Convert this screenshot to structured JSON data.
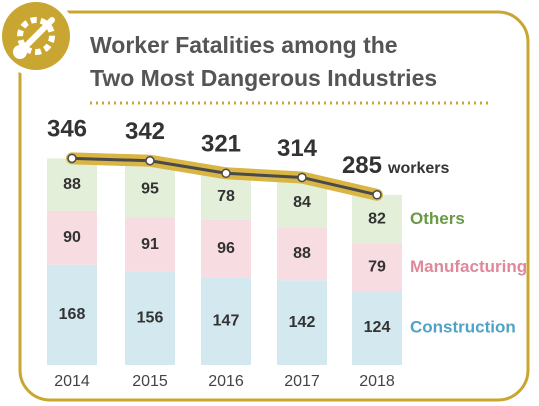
{
  "chart_data": {
    "type": "stacked_bar_line",
    "title": [
      "Worker Fatalities among the",
      "Two Most Dangerous Industries"
    ],
    "categories": [
      "2014",
      "2015",
      "2016",
      "2017",
      "2018"
    ],
    "series": [
      {
        "name": "Construction",
        "color": "#d3e9ef",
        "label_color": "#4fa3c6",
        "values": [
          168,
          156,
          147,
          142,
          124
        ]
      },
      {
        "name": "Manufacturing",
        "color": "#f7dce2",
        "label_color": "#e0889a",
        "values": [
          90,
          91,
          96,
          88,
          79
        ]
      },
      {
        "name": "Others",
        "color": "#e3efd9",
        "label_color": "#6a9a48",
        "values": [
          88,
          95,
          78,
          84,
          82
        ]
      }
    ],
    "totals": [
      346,
      342,
      321,
      314,
      285
    ],
    "unit": "workers",
    "line_color": "#4a4a4a",
    "line_outline": "#d9b544",
    "ylim": [
      0,
      360
    ]
  }
}
